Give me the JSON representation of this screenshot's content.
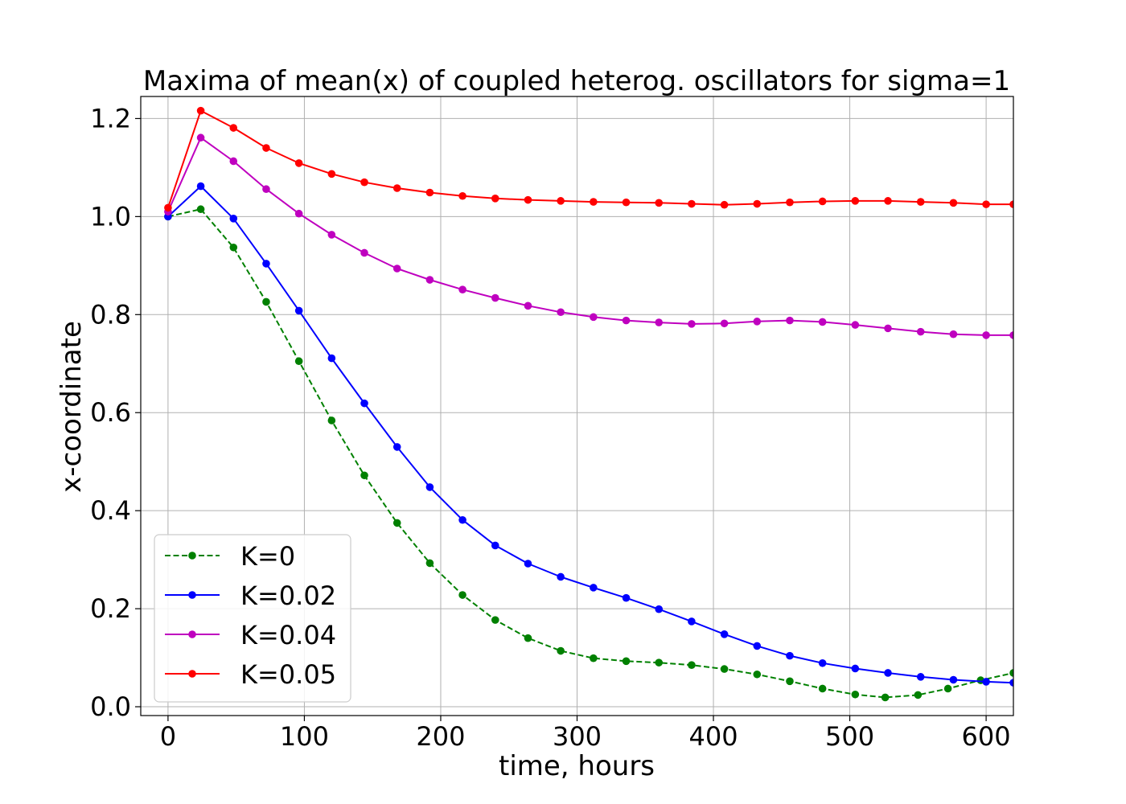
{
  "chart_data": {
    "type": "line",
    "title": "Maxima of mean(x) of coupled heterog. oscillators for sigma=1",
    "xlabel": "time, hours",
    "ylabel": "x-coordinate",
    "xlim": [
      -20,
      620
    ],
    "ylim": [
      -0.018,
      1.245
    ],
    "xticks": [
      0,
      100,
      200,
      300,
      400,
      500,
      600
    ],
    "xtick_labels": [
      "0",
      "100",
      "200",
      "300",
      "400",
      "500",
      "600"
    ],
    "yticks": [
      0.0,
      0.2,
      0.4,
      0.6,
      0.8,
      1.0,
      1.2
    ],
    "ytick_labels": [
      "0.0",
      "0.2",
      "0.4",
      "0.6",
      "0.8",
      "1.0",
      "1.2"
    ],
    "grid": true,
    "legend_position": "lower-left",
    "series": [
      {
        "name": "K=0",
        "color": "#008000",
        "linestyle": "dashed",
        "marker": "circle",
        "x": [
          0,
          24,
          48,
          72,
          96,
          120,
          144,
          168,
          192,
          216,
          240,
          264,
          288,
          312,
          336,
          360,
          384,
          408,
          432,
          456,
          480,
          504,
          526,
          550,
          572,
          596,
          620
        ],
        "y": [
          1.0,
          1.015,
          0.937,
          0.826,
          0.705,
          0.584,
          0.472,
          0.375,
          0.293,
          0.228,
          0.177,
          0.14,
          0.114,
          0.099,
          0.093,
          0.09,
          0.085,
          0.077,
          0.066,
          0.052,
          0.037,
          0.025,
          0.019,
          0.024,
          0.037,
          0.054,
          0.069
        ]
      },
      {
        "name": "K=0.02",
        "color": "#0000ff",
        "linestyle": "solid",
        "marker": "circle",
        "x": [
          0,
          24,
          48,
          72,
          96,
          120,
          144,
          168,
          192,
          216,
          240,
          264,
          288,
          312,
          336,
          360,
          384,
          408,
          432,
          456,
          480,
          504,
          528,
          552,
          576,
          600,
          620
        ],
        "y": [
          1.0,
          1.062,
          0.996,
          0.904,
          0.808,
          0.711,
          0.619,
          0.53,
          0.448,
          0.381,
          0.329,
          0.292,
          0.265,
          0.243,
          0.222,
          0.199,
          0.174,
          0.148,
          0.124,
          0.104,
          0.089,
          0.078,
          0.069,
          0.061,
          0.055,
          0.051,
          0.049
        ]
      },
      {
        "name": "K=0.04",
        "color": "#bf00bf",
        "linestyle": "solid",
        "marker": "circle",
        "x": [
          0,
          24,
          48,
          72,
          96,
          120,
          144,
          168,
          192,
          216,
          240,
          264,
          288,
          312,
          336,
          360,
          384,
          408,
          432,
          456,
          480,
          504,
          528,
          552,
          576,
          600,
          620
        ],
        "y": [
          1.01,
          1.161,
          1.113,
          1.056,
          1.006,
          0.963,
          0.926,
          0.894,
          0.871,
          0.851,
          0.834,
          0.818,
          0.805,
          0.795,
          0.788,
          0.784,
          0.781,
          0.782,
          0.786,
          0.788,
          0.785,
          0.779,
          0.772,
          0.765,
          0.76,
          0.758,
          0.758
        ]
      },
      {
        "name": "K=0.05",
        "color": "#ff0000",
        "linestyle": "solid",
        "marker": "circle",
        "x": [
          0,
          24,
          48,
          72,
          96,
          120,
          144,
          168,
          192,
          216,
          240,
          264,
          288,
          312,
          336,
          360,
          384,
          408,
          432,
          456,
          480,
          504,
          528,
          552,
          576,
          600,
          620
        ],
        "y": [
          1.018,
          1.216,
          1.181,
          1.14,
          1.109,
          1.087,
          1.07,
          1.058,
          1.049,
          1.042,
          1.037,
          1.034,
          1.032,
          1.03,
          1.029,
          1.028,
          1.026,
          1.024,
          1.026,
          1.029,
          1.031,
          1.032,
          1.032,
          1.03,
          1.028,
          1.025,
          1.025
        ]
      }
    ]
  }
}
